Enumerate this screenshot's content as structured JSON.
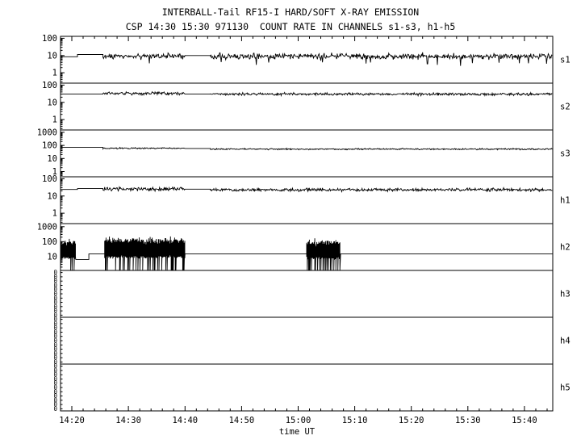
{
  "chart_data": {
    "type": "line",
    "title": "INTERBALL-Tail RF15-I HARD/SOFT X-RAY EMISSION",
    "subtitle": "CSP 14:30 15:30 971130  COUNT RATE IN CHANNELS s1-s3, h1-h5",
    "xlabel": "time UT",
    "yscale": "log",
    "grid": false,
    "legend": "panel labels on right side",
    "t_min": 858,
    "t_max": 945,
    "x_major": [
      860,
      870,
      880,
      890,
      900,
      910,
      920,
      930,
      940
    ],
    "x_tick_labels": [
      "14:20",
      "14:30",
      "14:40",
      "14:50",
      "15:00",
      "15:10",
      "15:20",
      "15:30",
      "15:40"
    ],
    "panels": [
      {
        "label": "s1",
        "yscale": "log",
        "ylim": [
          0.25,
          130
        ],
        "yticks": [
          100,
          10,
          1
        ],
        "segments": [
          {
            "type": "flat",
            "t0": 858,
            "t1": 861,
            "level": 8.5
          },
          {
            "type": "flat",
            "t0": 861,
            "t1": 865.5,
            "level": 11.5
          },
          {
            "type": "noisy",
            "t0": 865.5,
            "t1": 880,
            "level": 9,
            "spread": 0.55,
            "dip_prob": 0.025,
            "dip_factor": 0.35
          },
          {
            "type": "flat",
            "t0": 880,
            "t1": 884.5,
            "level": 10
          },
          {
            "type": "noisy",
            "t0": 884.5,
            "t1": 945,
            "level": 9,
            "spread": 0.55,
            "dip_prob": 0.025,
            "dip_factor": 0.35
          }
        ]
      },
      {
        "label": "s2",
        "yscale": "log",
        "ylim": [
          0.25,
          130
        ],
        "yticks": [
          100,
          10,
          1
        ],
        "segments": [
          {
            "type": "flat",
            "t0": 858,
            "t1": 865.5,
            "level": 30
          },
          {
            "type": "noisy",
            "t0": 865.5,
            "t1": 880,
            "level": 33,
            "spread": 0.3
          },
          {
            "type": "flat",
            "t0": 880,
            "t1": 884.5,
            "level": 30
          },
          {
            "type": "noisy",
            "t0": 884.5,
            "t1": 945,
            "level": 30,
            "spread": 0.26
          }
        ]
      },
      {
        "label": "s3",
        "yscale": "log",
        "ylim": [
          0.4,
          1500
        ],
        "yticks": [
          1000,
          100,
          10,
          1
        ],
        "segments": [
          {
            "type": "flat",
            "t0": 858,
            "t1": 865.5,
            "level": 70
          },
          {
            "type": "noisy",
            "t0": 865.5,
            "t1": 880,
            "level": 60,
            "spread": 0.18
          },
          {
            "type": "flat",
            "t0": 880,
            "t1": 884.5,
            "level": 58
          },
          {
            "type": "noisy",
            "t0": 884.5,
            "t1": 945,
            "level": 52,
            "spread": 0.18
          }
        ]
      },
      {
        "label": "h1",
        "yscale": "log",
        "ylim": [
          0.25,
          130
        ],
        "yticks": [
          100,
          10,
          1
        ],
        "segments": [
          {
            "type": "flat",
            "t0": 858,
            "t1": 861,
            "level": 24
          },
          {
            "type": "flat",
            "t0": 861,
            "t1": 865.5,
            "level": 27
          },
          {
            "type": "noisy",
            "t0": 865.5,
            "t1": 880,
            "level": 25,
            "spread": 0.35
          },
          {
            "type": "flat",
            "t0": 880,
            "t1": 884.5,
            "level": 25
          },
          {
            "type": "noisy",
            "t0": 884.5,
            "t1": 945,
            "level": 23,
            "spread": 0.3
          }
        ]
      },
      {
        "label": "h2",
        "yscale": "log",
        "ylim": [
          1.2,
          1600
        ],
        "yticks": [
          1000,
          100,
          10
        ],
        "segments": [
          {
            "type": "burst",
            "t0": 858,
            "t1": 860.7,
            "hi": 90,
            "lo": 8,
            "drop_prob": 0.18
          },
          {
            "type": "flat",
            "t0": 860.7,
            "t1": 863,
            "level": 6.5
          },
          {
            "type": "flat",
            "t0": 863,
            "t1": 865.8,
            "level": 15
          },
          {
            "type": "burst",
            "t0": 865.8,
            "t1": 880,
            "hi": 120,
            "lo": 9,
            "drop_prob": 0.3
          },
          {
            "type": "flat",
            "t0": 880,
            "t1": 901.5,
            "level": 15
          },
          {
            "type": "burst",
            "t0": 901.5,
            "t1": 907.5,
            "hi": 90,
            "lo": 8,
            "drop_prob": 0.3
          },
          {
            "type": "flat",
            "t0": 907.5,
            "t1": 945,
            "level": 15
          }
        ]
      },
      {
        "label": "h3",
        "empty": true,
        "zero_labels": 11,
        "zero_label_char": "0"
      },
      {
        "label": "h4",
        "empty": true,
        "zero_labels": 11,
        "zero_label_char": "0"
      },
      {
        "label": "h5",
        "empty": true,
        "zero_labels": 11,
        "zero_label_char": "0"
      }
    ],
    "colors": {
      "trace": "#000000",
      "frame": "#000000",
      "background": "#ffffff"
    }
  }
}
